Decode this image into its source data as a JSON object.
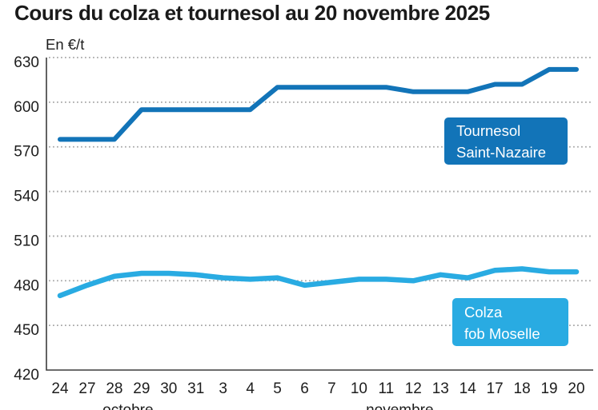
{
  "title": "Cours du colza et tournesol au 20 novembre 2025",
  "unit_label": "En €/t",
  "chart_data": {
    "type": "line",
    "title": "Cours du colza et tournesol au 20 novembre 2025",
    "ylabel": "En €/t",
    "xlabel": "",
    "grid": "dotted-horizontal",
    "legend_position": "inline-colored-boxes",
    "ylim": [
      420,
      630
    ],
    "yticks": [
      630,
      600,
      570,
      540,
      510,
      480,
      450,
      420
    ],
    "categories": [
      "24",
      "27",
      "28",
      "29",
      "30",
      "31",
      "3",
      "4",
      "5",
      "6",
      "7",
      "10",
      "11",
      "12",
      "13",
      "14",
      "17",
      "18",
      "19",
      "20"
    ],
    "month_groups": [
      {
        "label": "octobre",
        "from": 0,
        "to": 5
      },
      {
        "label": "novembre",
        "from": 6,
        "to": 19
      }
    ],
    "series": [
      {
        "name": "Tournesol Saint-Nazaire",
        "label": "Tournesol\nSaint-Nazaire",
        "color": "#1274b8",
        "values": [
          575,
          575,
          575,
          595,
          595,
          595,
          595,
          595,
          610,
          610,
          610,
          610,
          610,
          607,
          607,
          607,
          612,
          612,
          622,
          622
        ]
      },
      {
        "name": "Colza fob Moselle",
        "label": "Colza\nfob Moselle",
        "color": "#29abe2",
        "values": [
          470,
          477,
          483,
          485,
          485,
          484,
          482,
          481,
          482,
          477,
          479,
          481,
          481,
          480,
          484,
          482,
          487,
          488,
          486,
          486
        ]
      }
    ]
  },
  "colors": {
    "title_text": "#1a1a1a",
    "axis": "#3c3c3c",
    "grid": "#a9a9a9",
    "tick_text": "#1d1d1d",
    "series_label_text": "#ffffff"
  }
}
